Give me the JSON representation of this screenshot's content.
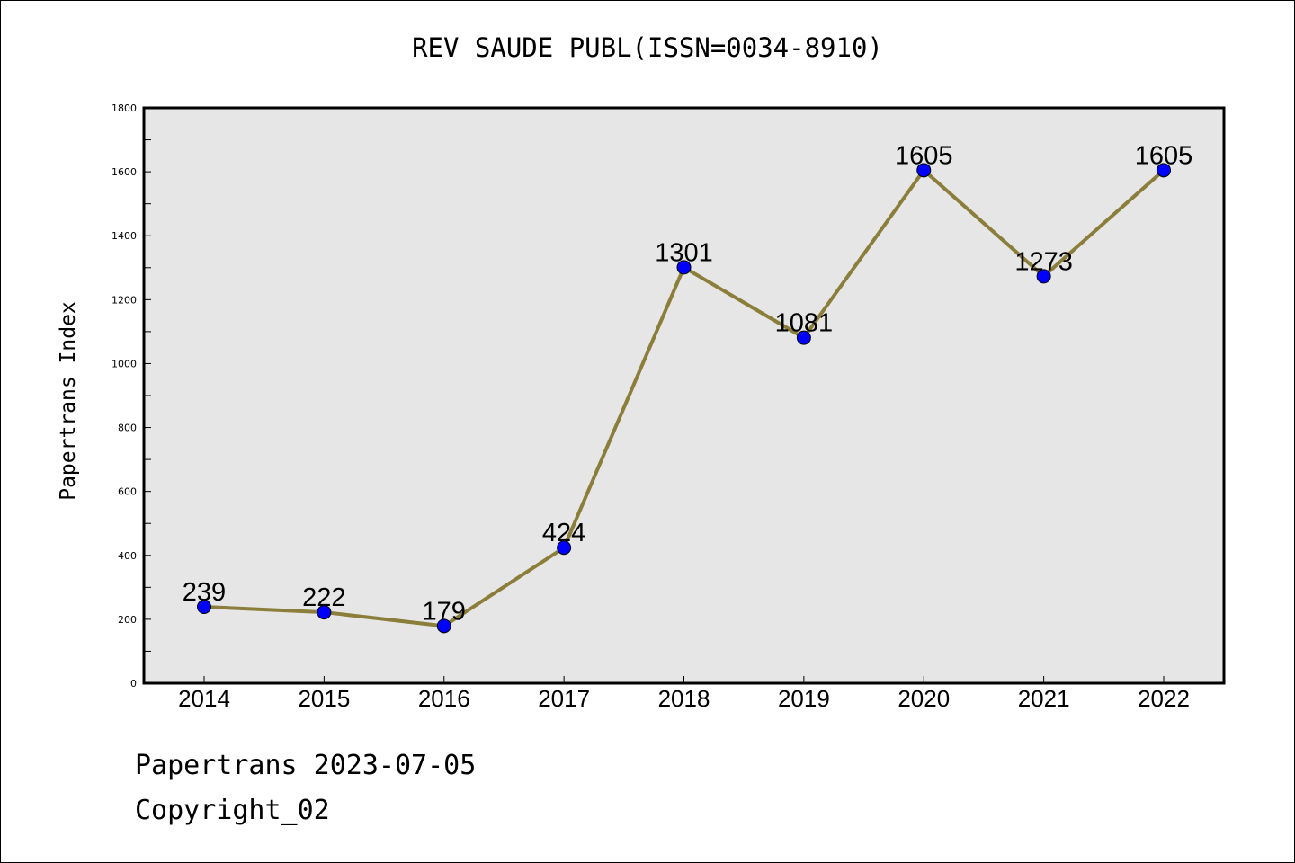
{
  "page": {
    "title": "REV SAUDE PUBL(ISSN=0034-8910)",
    "footer_date": "Papertrans 2023-07-05",
    "footer_copyright": "Copyright_02"
  },
  "chart_data": {
    "type": "line",
    "title": "REV SAUDE PUBL(ISSN=0034-8910)",
    "xlabel": "",
    "ylabel": "Papertrans Index",
    "categories": [
      "2014",
      "2015",
      "2016",
      "2017",
      "2018",
      "2019",
      "2020",
      "2021",
      "2022"
    ],
    "series": [
      {
        "values": [
          239,
          222,
          179,
          424,
          1301,
          1081,
          1605,
          1273,
          1605
        ],
        "data_labels": [
          "239",
          "222",
          "179",
          "424",
          "1301",
          "1081",
          "1605",
          "1273",
          "1605"
        ],
        "line_color": "#8b7d3a",
        "marker_color": "#0000ff"
      }
    ],
    "ylim": [
      0,
      1800
    ],
    "yticks": [
      0,
      200,
      400,
      600,
      800,
      1000,
      1200,
      1400,
      1600,
      1800
    ],
    "ytick_labels": [
      "0",
      "200",
      "400",
      "600",
      "800",
      "1000",
      "1200",
      "1400",
      "1600",
      "1800"
    ],
    "grid": false,
    "plot_background": "#e6e6e6",
    "legend": "none"
  }
}
